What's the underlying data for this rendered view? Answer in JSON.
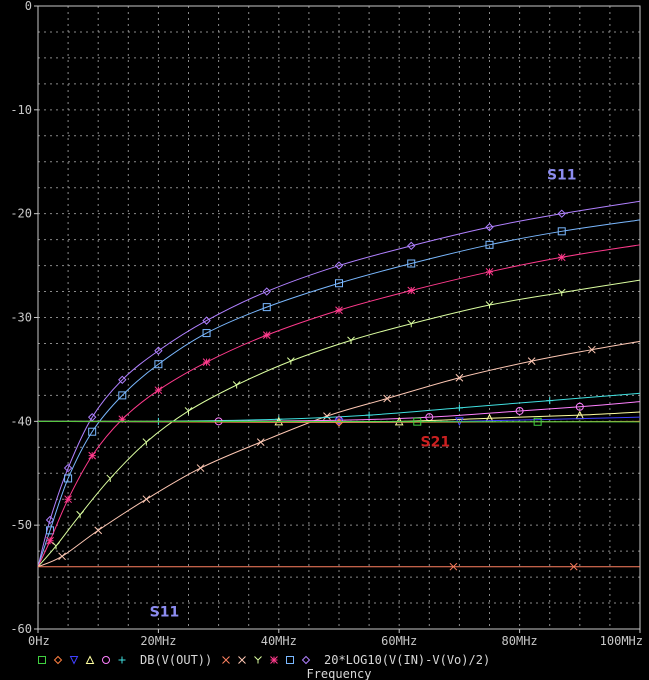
{
  "chart_data": {
    "type": "line",
    "xlabel": "Frequency",
    "ylabel": "",
    "xlim": [
      0,
      100
    ],
    "ylim": [
      -60,
      0
    ],
    "grid": true,
    "x_ticks": [
      {
        "value": 0,
        "label": "0Hz"
      },
      {
        "value": 20,
        "label": "20MHz"
      },
      {
        "value": 40,
        "label": "40MHz"
      },
      {
        "value": 60,
        "label": "60MHz"
      },
      {
        "value": 80,
        "label": "80MHz"
      },
      {
        "value": 100,
        "label": "100MHz"
      }
    ],
    "y_ticks": [
      {
        "value": 0,
        "label": "0"
      },
      {
        "value": -10,
        "label": "-10"
      },
      {
        "value": -20,
        "label": "-20"
      },
      {
        "value": -30,
        "label": "-30"
      },
      {
        "value": -40,
        "label": "-40"
      },
      {
        "value": -50,
        "label": "-50"
      },
      {
        "value": -60,
        "label": "-60"
      }
    ],
    "legend": {
      "position": "bottom",
      "group1_label": "DB(V(OUT))",
      "group2_label": "20*LOG10(V(IN)-V(Vo)/2)"
    },
    "annotations": [
      {
        "text": "S11",
        "x": 87,
        "y": -16.7,
        "color": "#8c8cf0"
      },
      {
        "text": "S21",
        "x": 66,
        "y": -42.4,
        "color": "#cc2020"
      },
      {
        "text": "S11",
        "x": 21,
        "y": -58.8,
        "color": "#8c8cf0"
      }
    ],
    "series": [
      {
        "marker": "diamond",
        "color": "#b080ff",
        "values": [
          [
            0,
            -54
          ],
          [
            2,
            -49.5
          ],
          [
            5,
            -44.5
          ],
          [
            9,
            -39.6
          ],
          [
            14,
            -36
          ],
          [
            20,
            -33.2
          ],
          [
            28,
            -30.3
          ],
          [
            38,
            -27.5
          ],
          [
            50,
            -25
          ],
          [
            62,
            -23.1
          ],
          [
            75,
            -21.3
          ],
          [
            87,
            -20
          ],
          [
            100,
            -18.8
          ]
        ]
      },
      {
        "marker": "square",
        "color": "#7ab8ff",
        "values": [
          [
            0,
            -54
          ],
          [
            2,
            -50.5
          ],
          [
            5,
            -45.5
          ],
          [
            9,
            -41
          ],
          [
            14,
            -37.5
          ],
          [
            20,
            -34.5
          ],
          [
            28,
            -31.5
          ],
          [
            38,
            -29
          ],
          [
            50,
            -26.7
          ],
          [
            62,
            -24.8
          ],
          [
            75,
            -23
          ],
          [
            87,
            -21.7
          ],
          [
            100,
            -20.6
          ]
        ]
      },
      {
        "marker": "star",
        "color": "#ff3a8c",
        "values": [
          [
            0,
            -54
          ],
          [
            2,
            -51.5
          ],
          [
            5,
            -47.5
          ],
          [
            9,
            -43.3
          ],
          [
            14,
            -39.8
          ],
          [
            20,
            -37
          ],
          [
            28,
            -34.3
          ],
          [
            38,
            -31.7
          ],
          [
            50,
            -29.3
          ],
          [
            62,
            -27.4
          ],
          [
            75,
            -25.6
          ],
          [
            87,
            -24.2
          ],
          [
            100,
            -23
          ]
        ]
      },
      {
        "marker": "y",
        "color": "#dcffa0",
        "values": [
          [
            0,
            -54
          ],
          [
            3,
            -52
          ],
          [
            7,
            -49
          ],
          [
            12,
            -45.5
          ],
          [
            18,
            -42
          ],
          [
            25,
            -39
          ],
          [
            33,
            -36.5
          ],
          [
            42,
            -34.2
          ],
          [
            52,
            -32.2
          ],
          [
            62,
            -30.6
          ],
          [
            75,
            -28.8
          ],
          [
            87,
            -27.6
          ],
          [
            100,
            -26.4
          ]
        ]
      },
      {
        "marker": "x",
        "color": "#ffc8b4",
        "values": [
          [
            0,
            -54
          ],
          [
            4,
            -53
          ],
          [
            10,
            -50.5
          ],
          [
            18,
            -47.5
          ],
          [
            27,
            -44.5
          ],
          [
            37,
            -42
          ],
          [
            48,
            -39.5
          ],
          [
            58,
            -37.8
          ],
          [
            70,
            -35.8
          ],
          [
            82,
            -34.2
          ],
          [
            92,
            -33.1
          ],
          [
            100,
            -32.3
          ]
        ]
      },
      {
        "marker": "plus",
        "color": "#40e0e0",
        "values": [
          [
            0,
            -40
          ],
          [
            20,
            -40
          ],
          [
            40,
            -39.8
          ],
          [
            55,
            -39.4
          ],
          [
            70,
            -38.7
          ],
          [
            85,
            -38
          ],
          [
            100,
            -37.3
          ]
        ]
      },
      {
        "marker": "circle",
        "color": "#ff80ff",
        "values": [
          [
            0,
            -40
          ],
          [
            30,
            -40
          ],
          [
            50,
            -39.9
          ],
          [
            65,
            -39.6
          ],
          [
            80,
            -39
          ],
          [
            90,
            -38.6
          ],
          [
            100,
            -38.1
          ]
        ]
      },
      {
        "marker": "triangle",
        "color": "#ffffa0",
        "values": [
          [
            0,
            -40
          ],
          [
            40,
            -40
          ],
          [
            60,
            -40
          ],
          [
            75,
            -39.7
          ],
          [
            90,
            -39.4
          ],
          [
            100,
            -39.1
          ]
        ]
      },
      {
        "marker": "tri-down",
        "color": "#4040ff",
        "values": [
          [
            0,
            -40
          ],
          [
            50,
            -40.1
          ],
          [
            70,
            -40
          ],
          [
            100,
            -39.6
          ]
        ]
      },
      {
        "marker": "diamond-o",
        "color": "#ff8040",
        "values": [
          [
            0,
            -40
          ],
          [
            50,
            -40.1
          ],
          [
            100,
            -40
          ]
        ]
      },
      {
        "marker": "square-o",
        "color": "#40d040",
        "values": [
          [
            0,
            -40
          ],
          [
            100,
            -40.05
          ]
        ]
      },
      {
        "marker": "x",
        "color": "#ff8060",
        "values": [
          [
            0,
            -54
          ],
          [
            100,
            -54
          ]
        ]
      }
    ],
    "legend_symbols": {
      "group1": [
        {
          "marker": "square-o",
          "color": "#40d040"
        },
        {
          "marker": "diamond-o",
          "color": "#ff8040"
        },
        {
          "marker": "tri-down",
          "color": "#4040ff"
        },
        {
          "marker": "triangle",
          "color": "#ffffa0"
        },
        {
          "marker": "circle",
          "color": "#ff80ff"
        },
        {
          "marker": "plus",
          "color": "#40e0e0"
        }
      ],
      "group2": [
        {
          "marker": "x",
          "color": "#ff8060"
        },
        {
          "marker": "x",
          "color": "#ffc8b4"
        },
        {
          "marker": "y",
          "color": "#dcffa0"
        },
        {
          "marker": "star",
          "color": "#ff3a8c"
        },
        {
          "marker": "square",
          "color": "#7ab8ff"
        },
        {
          "marker": "diamond",
          "color": "#b080ff"
        }
      ]
    }
  }
}
